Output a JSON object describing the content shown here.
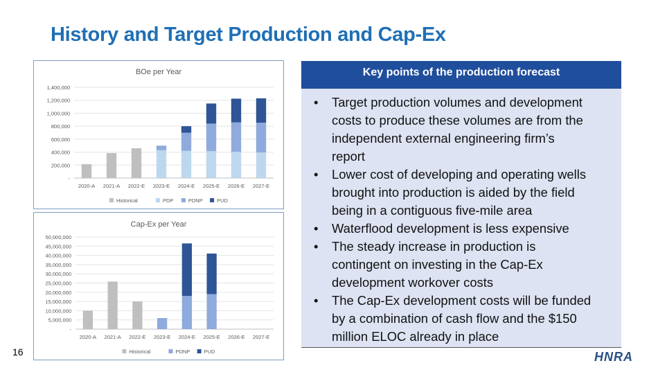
{
  "slide": {
    "title": "History and Target Production and Cap-Ex",
    "page_number": "16",
    "logo_text": "HNRA"
  },
  "colors": {
    "title": "#1f6fb5",
    "historical": "#bfbfbf",
    "pdp": "#bdd7ee",
    "pdnp": "#8faadc",
    "pud": "#2f5597",
    "panel_header": "#1f4e9c",
    "panel_bg": "#dde3f2"
  },
  "key_points": {
    "header": "Key points of the production forecast",
    "bullet_symbol": "•",
    "items": [
      {
        "lines": [
          "Target production volumes and development",
          "costs to produce these volumes are from the",
          "independent external engineering firm’s",
          "report"
        ]
      },
      {
        "lines": [
          "Lower cost of developing and operating wells",
          "brought into production is aided by the field",
          "being in a contiguous five-mile area"
        ]
      },
      {
        "lines": [
          "Waterflood development is less expensive"
        ]
      },
      {
        "lines": [
          "The steady increase in production is",
          "contingent on investing in the Cap-Ex",
          "development workover costs"
        ]
      },
      {
        "lines": [
          "The Cap-Ex development costs will be funded",
          "by a combination of cash flow and the $150",
          "million ELOC already in place"
        ]
      }
    ]
  },
  "chart_data": [
    {
      "type": "bar",
      "stacked": true,
      "title": "BOe per Year",
      "categories": [
        "2020-A",
        "2021-A",
        "2022-E",
        "2023-E",
        "2024-E",
        "2025-E",
        "2026-E",
        "2027-E"
      ],
      "series": [
        {
          "name": "Historical",
          "color": "#bfbfbf",
          "values": [
            215000,
            385000,
            460000,
            0,
            0,
            0,
            0,
            0
          ]
        },
        {
          "name": "PDP",
          "color": "#bdd7ee",
          "values": [
            0,
            0,
            0,
            430000,
            420000,
            415000,
            405000,
            395000
          ]
        },
        {
          "name": "PDNP",
          "color": "#8faadc",
          "values": [
            0,
            0,
            0,
            70000,
            280000,
            425000,
            455000,
            460000
          ]
        },
        {
          "name": "PUD",
          "color": "#2f5597",
          "values": [
            0,
            0,
            0,
            0,
            100000,
            310000,
            365000,
            375000
          ]
        }
      ],
      "ylim": [
        0,
        1400000
      ],
      "yticks": [
        0,
        200000,
        400000,
        600000,
        800000,
        1000000,
        1200000,
        1400000
      ],
      "ytick_labels": [
        "-",
        "200,000",
        "400,000",
        "600,000",
        "800,000",
        "1,000,000",
        "1,200,000",
        "1,400,000"
      ],
      "legend": [
        "Historical",
        "PDP",
        "PDNP",
        "PUD"
      ],
      "legend_position": "bottom",
      "grid": true
    },
    {
      "type": "bar",
      "stacked": true,
      "title": "Cap-Ex per Year",
      "categories": [
        "2020-A",
        "2021-A",
        "2022-E",
        "2023-E",
        "2024-E",
        "2025-E",
        "2026-E",
        "2027-E"
      ],
      "series": [
        {
          "name": "Historical",
          "color": "#bfbfbf",
          "values": [
            10000000,
            25800000,
            15000000,
            0,
            0,
            0,
            0,
            0
          ]
        },
        {
          "name": "PDNP",
          "color": "#8faadc",
          "values": [
            0,
            0,
            0,
            6000000,
            18000000,
            19000000,
            0,
            0
          ]
        },
        {
          "name": "PUD",
          "color": "#2f5597",
          "values": [
            0,
            0,
            0,
            0,
            28500000,
            22000000,
            0,
            0
          ]
        }
      ],
      "ylim": [
        0,
        50000000
      ],
      "yticks": [
        0,
        5000000,
        10000000,
        15000000,
        20000000,
        25000000,
        30000000,
        35000000,
        40000000,
        45000000,
        50000000
      ],
      "ytick_labels": [
        "-",
        "5,000,000",
        "10,000,000",
        "15,000,000",
        "20,000,000",
        "25,000,000",
        "30,000,000",
        "35,000,000",
        "40,000,000",
        "45,000,000",
        "50,000,000"
      ],
      "legend": [
        "Historical",
        "PDNP",
        "PUD"
      ],
      "legend_position": "bottom",
      "grid": true
    }
  ]
}
